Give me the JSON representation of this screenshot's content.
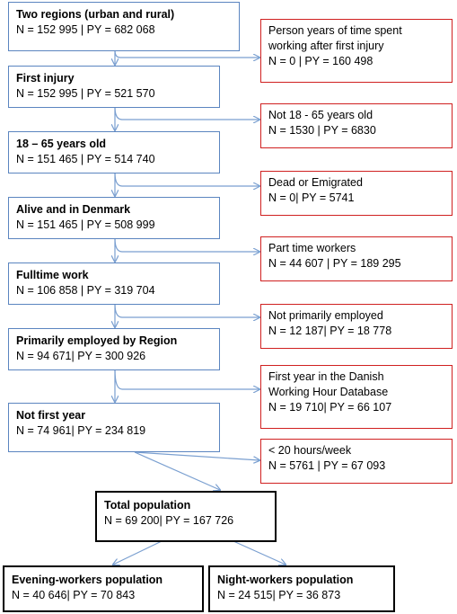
{
  "main_flow": [
    {
      "title": "Two regions (urban and rural)",
      "stats": "N = 152 995 | PY = 682 068"
    },
    {
      "title": "First injury",
      "stats": "N = 152 995 | PY = 521 570"
    },
    {
      "title": "18 – 65 years old",
      "stats": "N = 151 465 | PY = 514 740"
    },
    {
      "title": "Alive and in Denmark",
      "stats": "N = 151 465 | PY = 508 999"
    },
    {
      "title": "Fulltime work",
      "stats": "N = 106 858 | PY = 319 704"
    },
    {
      "title": "Primarily employed by Region",
      "stats": "N = 94 671| PY = 300 926"
    },
    {
      "title": "Not first year",
      "stats": "N = 74 961| PY = 234 819"
    }
  ],
  "exclusions": [
    {
      "lines": [
        "Person years of time spent",
        "working after first injury"
      ],
      "stats": "N = 0 | PY = 160 498"
    },
    {
      "lines": [
        "Not 18 - 65 years old"
      ],
      "stats": "N = 1530 | PY = 6830"
    },
    {
      "lines": [
        "Dead or Emigrated"
      ],
      "stats": "N = 0| PY = 5741"
    },
    {
      "lines": [
        "Part time workers"
      ],
      "stats": "N = 44 607 | PY = 189 295"
    },
    {
      "lines": [
        "Not primarily employed"
      ],
      "stats": "N = 12 187| PY = 18 778"
    },
    {
      "lines": [
        "First year in the Danish",
        "Working Hour Database"
      ],
      "stats": "N = 19 710| PY = 66 107"
    },
    {
      "lines": [
        "< 20 hours/week"
      ],
      "stats": "N = 5761 | PY = 67 093"
    }
  ],
  "total": {
    "title": "Total population",
    "stats": "N = 69 200| PY = 167 726"
  },
  "evening": {
    "title": "Evening-workers population",
    "stats": "N = 40 646| PY = 70 843"
  },
  "night": {
    "title": "Night-workers population",
    "stats": "N = 24 515| PY = 36 873"
  },
  "colors": {
    "main_border": "#5b85c0",
    "exclusion_border": "#d02020",
    "final_border": "#000000",
    "arrow": "#7a9fd0"
  }
}
